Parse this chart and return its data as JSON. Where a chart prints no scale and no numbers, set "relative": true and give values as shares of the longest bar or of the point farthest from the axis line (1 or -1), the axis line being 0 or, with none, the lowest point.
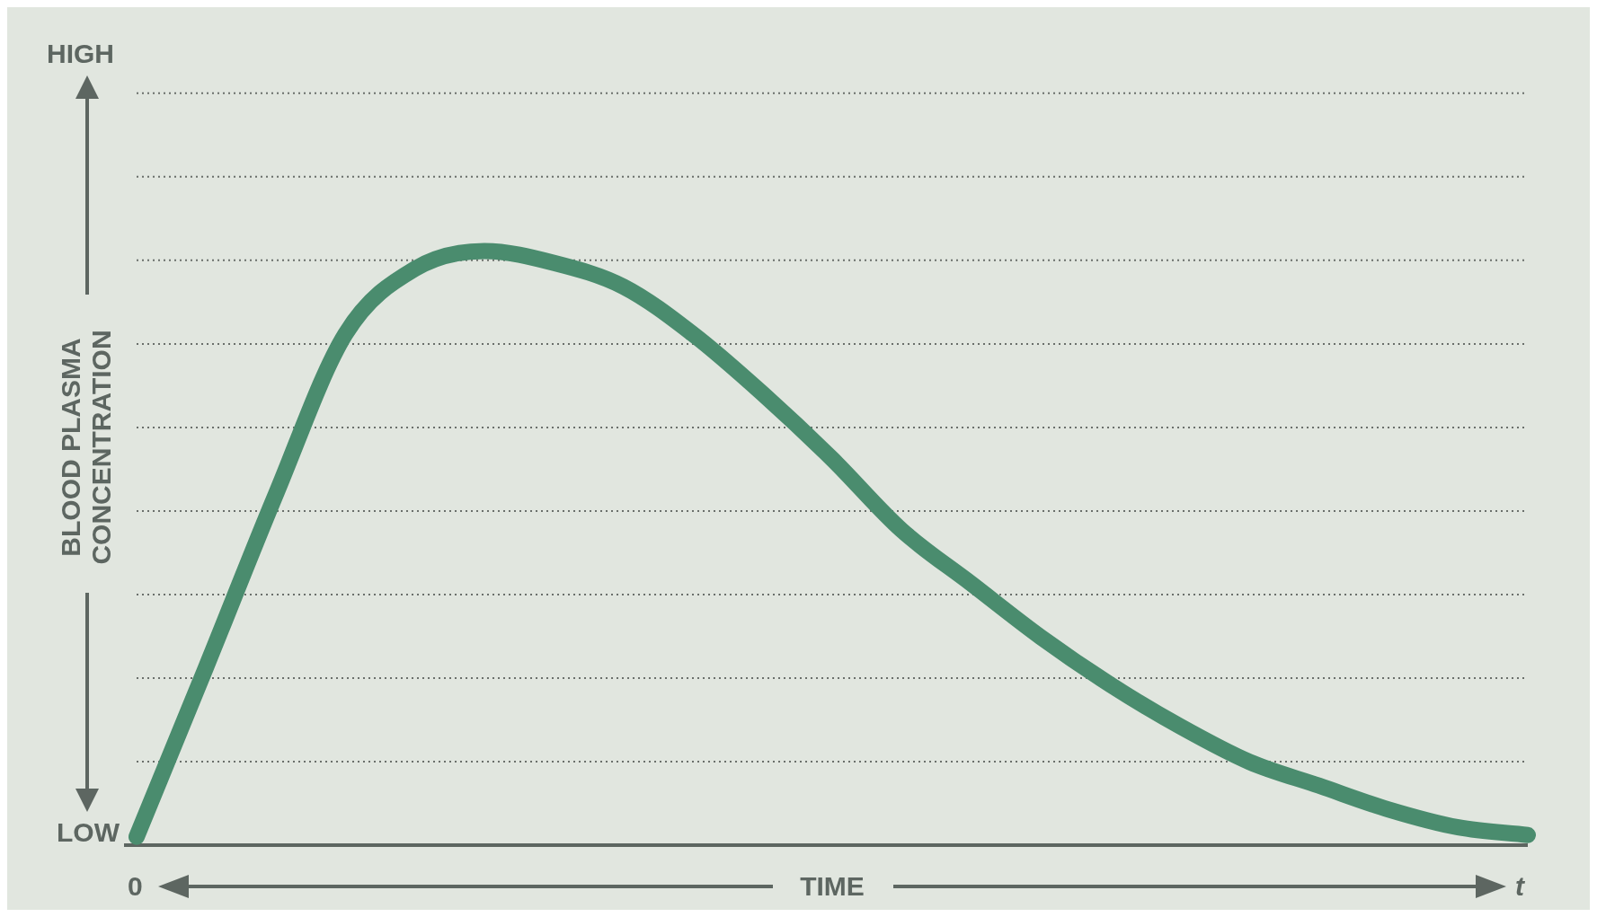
{
  "chart_data": {
    "type": "line",
    "relative": true,
    "xlabel": "TIME",
    "ylabel": "BLOOD PLASMA CONCENTRATION",
    "annotations": [
      "HIGH",
      "LOW",
      "0",
      "t"
    ],
    "grid": true,
    "marker": "none",
    "line_style": "solid",
    "categories": [
      null,
      null,
      null,
      null,
      null,
      null,
      null,
      null,
      null,
      null,
      null,
      null,
      null,
      null,
      null,
      null,
      null,
      null,
      null,
      null,
      null
    ],
    "series": [
      {
        "color": "#4a8c6e",
        "values": [
          0.014,
          0.3,
          0.59,
          0.86,
          0.97,
          1.0,
          0.98,
          0.94,
          0.86,
          0.76,
          0.65,
          0.53,
          0.44,
          0.35,
          0.27,
          0.2,
          0.14,
          0.1,
          0.06,
          0.03,
          0.017
        ]
      }
    ]
  }
}
